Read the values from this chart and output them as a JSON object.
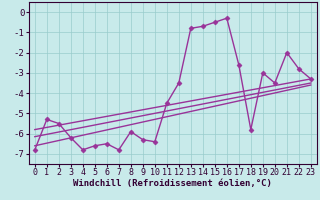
{
  "x": [
    0,
    1,
    2,
    3,
    4,
    5,
    6,
    7,
    8,
    9,
    10,
    11,
    12,
    13,
    14,
    15,
    16,
    17,
    18,
    19,
    20,
    21,
    22,
    23
  ],
  "y_main": [
    -6.8,
    -5.3,
    -5.5,
    -6.2,
    -6.8,
    -6.6,
    -6.5,
    -6.8,
    -5.9,
    -6.3,
    -6.4,
    -4.5,
    -3.5,
    -0.8,
    -0.7,
    -0.5,
    -0.3,
    -2.6,
    -5.8,
    -3.0,
    -3.5,
    -2.0,
    -2.8,
    -3.3
  ],
  "line1_x": [
    0,
    23
  ],
  "line1_y": [
    -5.8,
    -3.3
  ],
  "line2_x": [
    0,
    23
  ],
  "line2_y": [
    -6.6,
    -3.6
  ],
  "line3_x": [
    0,
    23
  ],
  "line3_y": [
    -6.15,
    -3.5
  ],
  "bg_color": "#c8eaea",
  "line_color": "#993399",
  "grid_color": "#99cccc",
  "xlabel": "Windchill (Refroidissement éolien,°C)",
  "xlim": [
    -0.5,
    23.5
  ],
  "ylim": [
    -7.5,
    0.5
  ],
  "yticks": [
    0,
    -1,
    -2,
    -3,
    -4,
    -5,
    -6,
    -7
  ],
  "xticks": [
    0,
    1,
    2,
    3,
    4,
    5,
    6,
    7,
    8,
    9,
    10,
    11,
    12,
    13,
    14,
    15,
    16,
    17,
    18,
    19,
    20,
    21,
    22,
    23
  ],
  "marker": "D",
  "marker_size": 2.5,
  "line_width": 1.0,
  "xlabel_fontsize": 6.5,
  "tick_fontsize": 6.0,
  "label_color": "#330033",
  "spine_color": "#330033"
}
